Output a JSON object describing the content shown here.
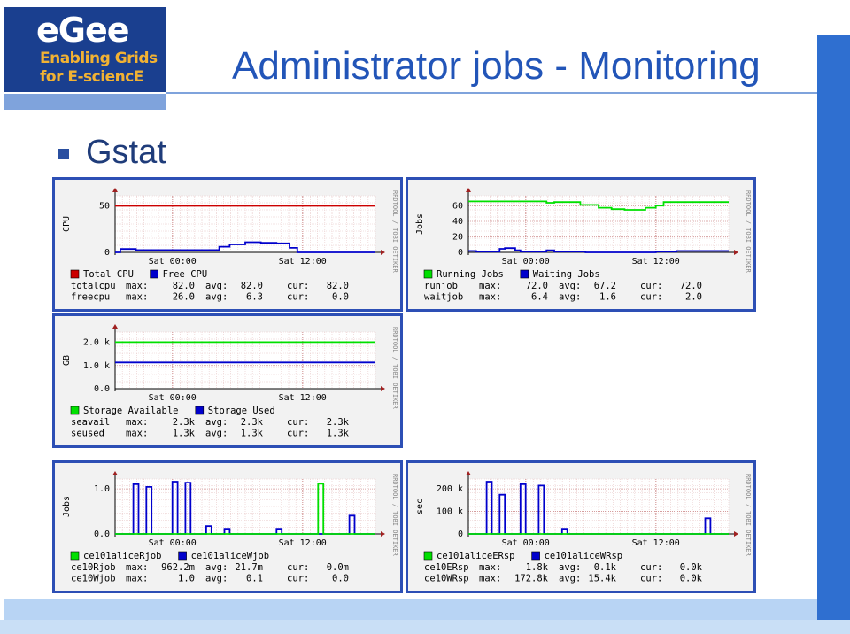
{
  "slide": {
    "title": "Administrator jobs - Monitoring",
    "bullet": "Gstat",
    "logo": {
      "word": "eGee",
      "line1": "Enabling Grids",
      "line2": "for E-sciencE"
    }
  },
  "colors": {
    "accent": "#2255b8",
    "panel_border": "#2d4fb5",
    "green": "#00e000",
    "blue": "#0000cc",
    "red": "#cc0000"
  },
  "watermark": "RRDTOOL / TOBI OETIKER",
  "panels": [
    {
      "id": "cpu",
      "ylabel": "CPU",
      "yticks": [
        "50",
        "0"
      ],
      "ymax": 100,
      "xticks": [
        "Sat 00:00",
        "Sat 12:00"
      ],
      "legend": [
        {
          "name": "Total CPU",
          "color": "#cc0000"
        },
        {
          "name": "Free CPU",
          "color": "#0000cc"
        }
      ],
      "stats": [
        {
          "label": "totalcpu",
          "max": "82.0",
          "avg": "82.0",
          "cur": "82.0"
        },
        {
          "label": "freecpu",
          "max": "26.0",
          "avg": "6.3",
          "cur": "0.0"
        }
      ]
    },
    {
      "id": "jobs",
      "ylabel": "Jobs",
      "yticks": [
        "60",
        "40",
        "20",
        "0"
      ],
      "ymax": 80,
      "xticks": [
        "Sat 00:00",
        "Sat 12:00"
      ],
      "legend": [
        {
          "name": "Running Jobs",
          "color": "#00e000"
        },
        {
          "name": "Waiting Jobs",
          "color": "#0000cc"
        }
      ],
      "stats": [
        {
          "label": "runjob",
          "max": "72.0",
          "avg": "67.2",
          "cur": "72.0"
        },
        {
          "label": "waitjob",
          "max": "6.4",
          "avg": "1.6",
          "cur": "2.0"
        }
      ]
    },
    {
      "id": "storage",
      "ylabel": "GB",
      "yticks": [
        "2.0 k",
        "1.0 k",
        "0.0"
      ],
      "ymax": 2800,
      "xticks": [
        "Sat 00:00",
        "Sat 12:00"
      ],
      "legend": [
        {
          "name": "Storage Available",
          "color": "#00e000"
        },
        {
          "name": "Storage Used",
          "color": "#0000cc"
        }
      ],
      "stats": [
        {
          "label": "seavail",
          "max": "2.3k",
          "avg": "2.3k",
          "cur": "2.3k"
        },
        {
          "label": "seused",
          "max": "1.3k",
          "avg": "1.3k",
          "cur": "1.3k"
        }
      ]
    },
    {
      "id": "alicejobs",
      "ylabel": "Jobs",
      "yticks": [
        "1.0",
        "0.0"
      ],
      "ymax": 1.05,
      "xticks": [
        "Sat 00:00",
        "Sat 12:00"
      ],
      "legend": [
        {
          "name": "ce101aliceRjob",
          "color": "#00e000"
        },
        {
          "name": "ce101aliceWjob",
          "color": "#0000cc"
        }
      ],
      "stats": [
        {
          "label": "ce10Rjob",
          "max": "962.2m",
          "avg": "21.7m",
          "cur": "0.0m"
        },
        {
          "label": "ce10Wjob",
          "max": "1.0",
          "avg": "0.1",
          "cur": "0.0"
        }
      ]
    },
    {
      "id": "alicersp",
      "ylabel": "sec",
      "yticks": [
        "200 k",
        "100 k",
        "0"
      ],
      "ymax": 210,
      "xticks": [
        "Sat 00:00",
        "Sat 12:00"
      ],
      "legend": [
        {
          "name": "ce101aliceERsp",
          "color": "#00e000"
        },
        {
          "name": "ce101aliceWRsp",
          "color": "#0000cc"
        }
      ],
      "stats": [
        {
          "label": "ce10ERsp",
          "max": "1.8k",
          "avg": "0.1k",
          "cur": "0.0k"
        },
        {
          "label": "ce10WRsp",
          "max": "172.8k",
          "avg": "15.4k",
          "cur": "0.0k"
        }
      ]
    }
  ],
  "stat_labels": {
    "max": "max:",
    "avg": "avg:",
    "cur": "cur:"
  }
}
